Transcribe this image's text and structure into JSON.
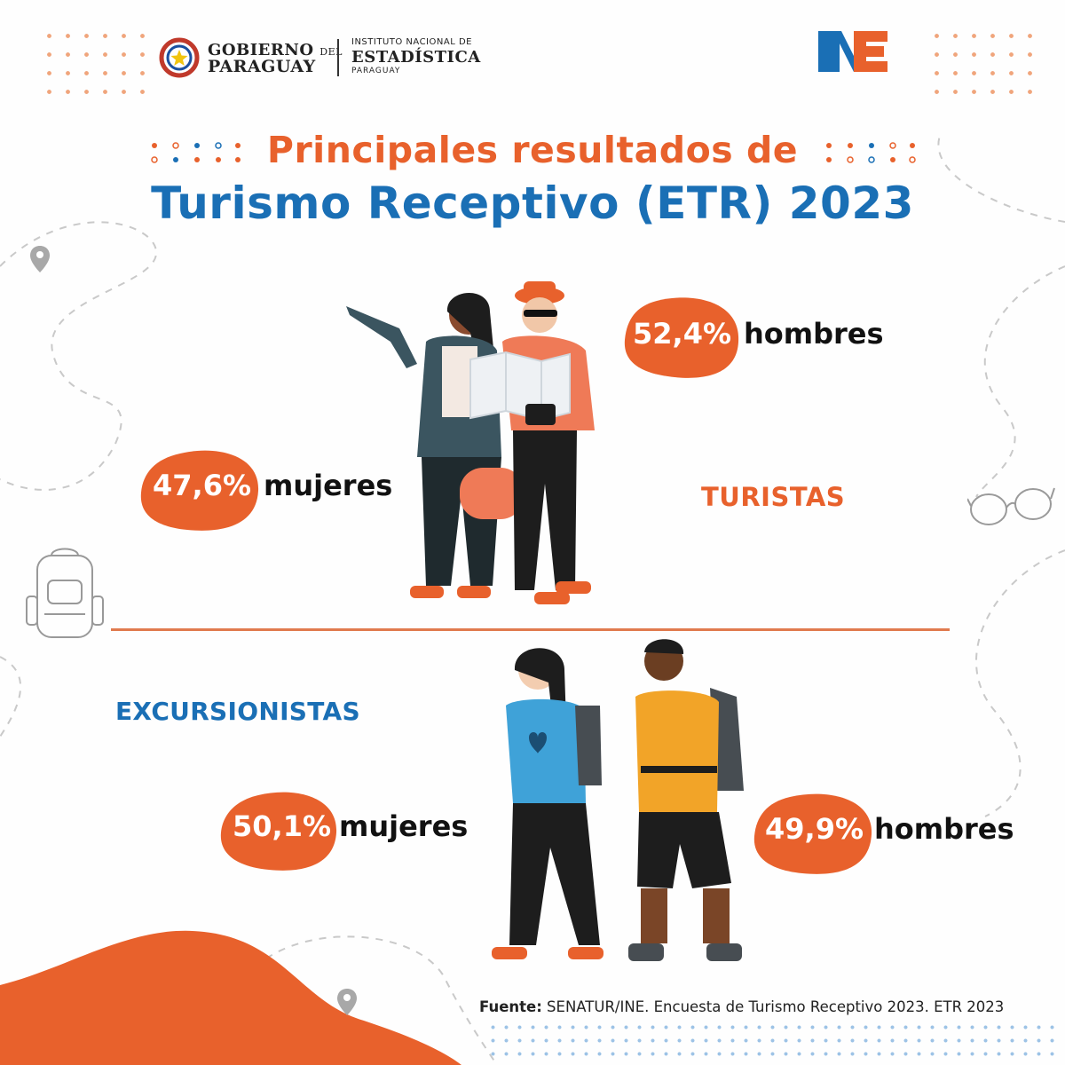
{
  "header": {
    "gobierno_line1": "GOBIERNO",
    "gobierno_del": "DEL",
    "gobierno_line2": "PARAGUAY",
    "ine_line1": "INSTITUTO NACIONAL DE",
    "ine_line2": "ESTADÍSTICA",
    "ine_line3": "PARAGUAY",
    "ine_logo_text": "INE"
  },
  "title": {
    "line1": "Principales resultados de",
    "line2": "Turismo Receptivo (ETR) 2023"
  },
  "turistas": {
    "section_label": "TURISTAS",
    "hombres": {
      "value": "52,4%",
      "label": "hombres"
    },
    "mujeres": {
      "value": "47,6%",
      "label": "mujeres"
    }
  },
  "excursionistas": {
    "section_label": "EXCURSIONISTAS",
    "mujeres": {
      "value": "50,1%",
      "label": "mujeres"
    },
    "hombres": {
      "value": "49,9%",
      "label": "hombres"
    }
  },
  "footer": {
    "source_prefix": "Fuente:",
    "source_text": " SENATUR/INE. Encuesta de Turismo Receptivo 2023. ETR 2023"
  },
  "colors": {
    "orange": "#e8612c",
    "blue": "#1a6fb5",
    "dark": "#111111"
  },
  "icons": [
    "location-pin-icon",
    "backpack-icon",
    "sunglasses-icon",
    "government-seal-icon",
    "ine-logo-icon"
  ]
}
